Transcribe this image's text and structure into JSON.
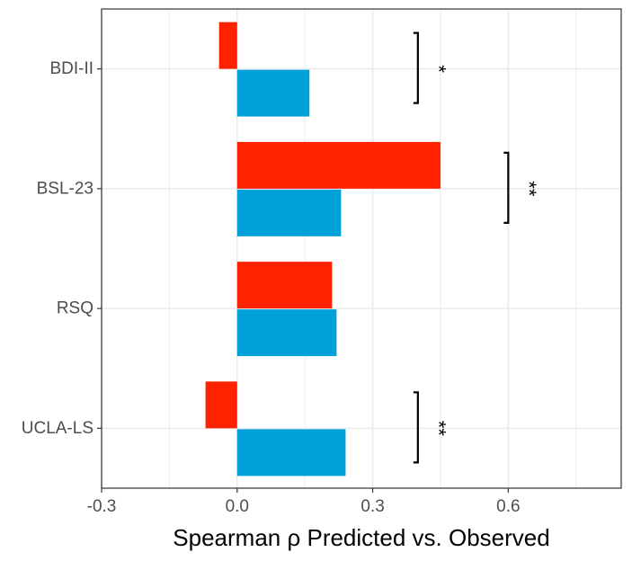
{
  "chart_data": {
    "type": "bar",
    "orientation": "horizontal",
    "categories": [
      "BDI-II",
      "BSL-23",
      "RSQ",
      "UCLA-LS"
    ],
    "series": [
      {
        "values": [
          -0.04,
          0.45,
          0.21,
          -0.07
        ],
        "color": "#ff2200"
      },
      {
        "values": [
          0.16,
          0.23,
          0.22,
          0.24
        ],
        "color": "#00a0d8"
      }
    ],
    "xlabel": "Spearman ρ Predicted vs. Observed",
    "ylabel": "",
    "xlim": [
      -0.3,
      0.85
    ],
    "xticks": [
      -0.3,
      0.0,
      0.3,
      0.6
    ],
    "xtick_labels": [
      "-0.3",
      "0.0",
      "0.3",
      "0.6"
    ],
    "grid": true,
    "significance": [
      {
        "category": "BDI-II",
        "x": 0.4,
        "label": "*"
      },
      {
        "category": "BSL-23",
        "x": 0.6,
        "label": "**"
      },
      {
        "category": "UCLA-LS",
        "x": 0.4,
        "label": "**"
      }
    ]
  }
}
